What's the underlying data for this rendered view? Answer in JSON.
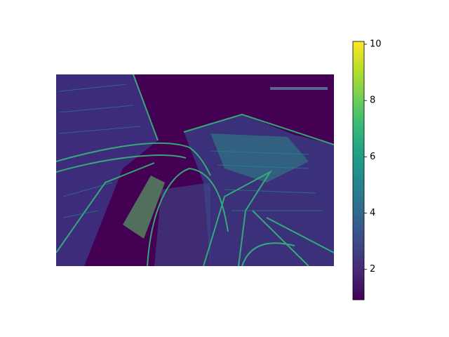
{
  "chart_data": {
    "type": "image",
    "colormap": "viridis",
    "clim": [
      0.92,
      10.1
    ],
    "cticks": [
      2,
      4,
      6,
      8,
      10
    ]
  }
}
